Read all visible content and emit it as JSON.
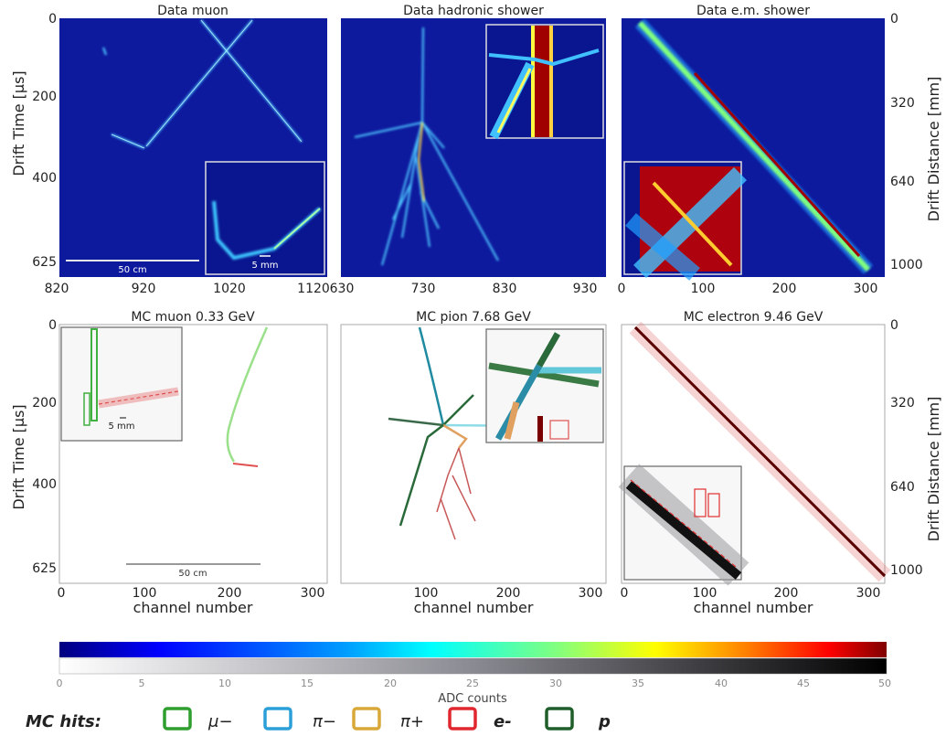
{
  "figure": {
    "colors": {
      "data_background": "#0d1a9e",
      "mc_background": "#ffffff",
      "jet_ramp": [
        "#00007f",
        "#0000ff",
        "#00a0ff",
        "#00ffff",
        "#80ff80",
        "#ffff00",
        "#ff8000",
        "#ff0000",
        "#800000"
      ],
      "gray_ramp": [
        "#ffffff",
        "#000000"
      ]
    },
    "panels": [
      {
        "title": "Data muon",
        "x_ticks": [
          "820",
          "920",
          "1020",
          "1120"
        ],
        "scale_bar": "50 cm",
        "inset_scale": "5 mm"
      },
      {
        "title": "Data hadronic shower",
        "x_ticks": [
          "630",
          "730",
          "830",
          "930"
        ]
      },
      {
        "title": "Data e.m. shower",
        "x_ticks": [
          "0",
          "100",
          "200",
          "300"
        ]
      },
      {
        "title": "MC muon 0.33 GeV",
        "x_ticks": [
          "0",
          "100",
          "200",
          "300"
        ],
        "scale_bar": "50 cm",
        "inset_scale": "5 mm"
      },
      {
        "title": "MC pion 7.68 GeV",
        "x_ticks": [
          "100",
          "200",
          "300"
        ]
      },
      {
        "title": "MC electron 9.46 GeV",
        "x_ticks": [
          "0",
          "100",
          "200",
          "300"
        ]
      }
    ],
    "left_axis": {
      "label": "Drift Time [µs]",
      "ticks": [
        "0",
        "200",
        "400",
        "625"
      ]
    },
    "right_axis": {
      "label": "Drift Distance [mm]",
      "ticks": [
        "0",
        "320",
        "640",
        "1000"
      ]
    },
    "x_label": "channel number",
    "colorbar": {
      "label": "ADC counts",
      "ticks": [
        "0",
        "5",
        "10",
        "15",
        "20",
        "25",
        "30",
        "35",
        "40",
        "45",
        "50"
      ],
      "range": [
        0,
        50
      ]
    },
    "legend": {
      "title": "MC hits:",
      "items": [
        {
          "label": "μ−",
          "color": "#2e9e2e"
        },
        {
          "label": "π−",
          "color": "#2ba0d8"
        },
        {
          "label": "π+",
          "color": "#d8a838"
        },
        {
          "label": "e-",
          "color": "#e0262e",
          "bold": true
        },
        {
          "label": "p",
          "color": "#1f5e2a",
          "bold": true
        }
      ]
    }
  },
  "chart_data": [
    {
      "type": "heatmap",
      "title": "Data muon",
      "xlabel": "",
      "ylabel": "Drift Time [µs]",
      "x_ticks": [
        820,
        920,
        1020,
        1120
      ],
      "y_ticks": [
        0,
        200,
        400,
        625
      ],
      "xlim": [
        820,
        1130
      ],
      "ylim": [
        625,
        0
      ],
      "colormap": "jet"
    },
    {
      "type": "heatmap",
      "title": "Data hadronic shower",
      "xlabel": "",
      "ylabel": "",
      "x_ticks": [
        630,
        730,
        830,
        930
      ],
      "xlim": [
        630,
        970
      ],
      "ylim": [
        625,
        0
      ],
      "colormap": "jet"
    },
    {
      "type": "heatmap",
      "title": "Data e.m. shower",
      "xlabel": "",
      "ylabel": "Drift Distance [mm]",
      "x_ticks": [
        0,
        100,
        200,
        300
      ],
      "y2_ticks": [
        0,
        320,
        640,
        1000
      ],
      "xlim": [
        0,
        320
      ],
      "ylim": [
        625,
        0
      ],
      "colormap": "jet"
    },
    {
      "type": "heatmap",
      "title": "MC muon 0.33 GeV",
      "xlabel": "channel number",
      "ylabel": "Drift Time [µs]",
      "x_ticks": [
        0,
        100,
        200,
        300
      ],
      "y_ticks": [
        0,
        200,
        400,
        625
      ],
      "xlim": [
        0,
        320
      ],
      "ylim": [
        625,
        0
      ],
      "colormap": "gray"
    },
    {
      "type": "heatmap",
      "title": "MC pion 7.68 GeV",
      "xlabel": "channel number",
      "ylabel": "",
      "x_ticks": [
        100,
        200,
        300
      ],
      "xlim": [
        0,
        320
      ],
      "ylim": [
        625,
        0
      ],
      "colormap": "gray"
    },
    {
      "type": "heatmap",
      "title": "MC electron 9.46 GeV",
      "xlabel": "channel number",
      "ylabel": "Drift Distance [mm]",
      "x_ticks": [
        0,
        100,
        200,
        300
      ],
      "y2_ticks": [
        0,
        320,
        640,
        1000
      ],
      "xlim": [
        0,
        320
      ],
      "ylim": [
        625,
        0
      ],
      "colormap": "gray"
    }
  ]
}
